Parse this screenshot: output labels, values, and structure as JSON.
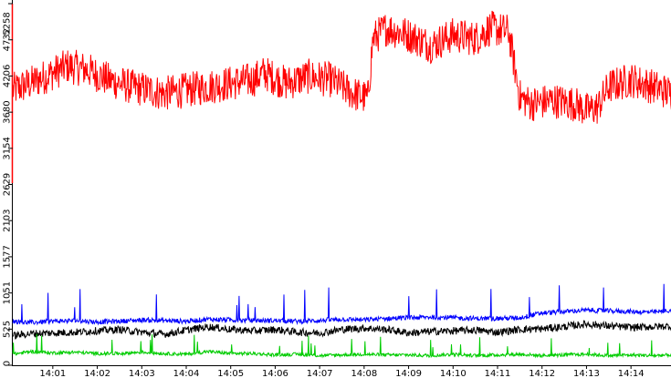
{
  "chart_data": {
    "type": "line",
    "title": "",
    "xlabel": "",
    "ylabel": "",
    "ylim": [
      0,
      5258
    ],
    "y_ticks": [
      "0",
      "525",
      "1051",
      "1577",
      "2103",
      "2629",
      "3154",
      "3680",
      "4206",
      "4732",
      "5258"
    ],
    "y_tick_values": [
      0,
      525,
      1051,
      1577,
      2103,
      2629,
      3154,
      3680,
      4206,
      4732,
      5258
    ],
    "x_ticks": [
      "14:01",
      "14:02",
      "14:03",
      "14:04",
      "14:05",
      "14:06",
      "14:07",
      "14:08",
      "14:09",
      "14:10",
      "14:11",
      "14:12",
      "14:13",
      "14:14"
    ],
    "x_tick_minutes": [
      1,
      2,
      3,
      4,
      5,
      6,
      7,
      8,
      9,
      10,
      11,
      12,
      13,
      14
    ],
    "x_range_minutes": [
      0.1,
      14.9
    ],
    "grid": false,
    "legend": "none",
    "series": [
      {
        "color": "#ff0000",
        "x": [
          "14:00:06",
          "14:00:30",
          "14:01:00",
          "14:01:20",
          "14:01:45",
          "14:02:15",
          "14:02:45",
          "14:03:10",
          "14:03:30",
          "14:04:00",
          "14:04:30",
          "14:05:00",
          "14:05:30",
          "14:05:45",
          "14:06:15",
          "14:06:45",
          "14:07:15",
          "14:07:30",
          "14:07:45",
          "14:08:05",
          "14:08:12",
          "14:08:30",
          "14:09:00",
          "14:09:30",
          "14:10:00",
          "14:10:30",
          "14:10:50",
          "14:11:15",
          "14:11:30",
          "14:11:45",
          "14:12:15",
          "14:12:45",
          "14:13:00",
          "14:13:15",
          "14:13:30",
          "14:14:00",
          "14:14:30",
          "14:14:55"
        ],
        "y": [
          4000,
          4100,
          4250,
          4350,
          4300,
          4150,
          4050,
          4000,
          3950,
          4000,
          4050,
          4100,
          4150,
          4250,
          4100,
          4200,
          4150,
          4050,
          3950,
          3880,
          4750,
          4900,
          4800,
          4650,
          4800,
          4750,
          4900,
          4850,
          3900,
          3800,
          3850,
          3800,
          3700,
          3750,
          4050,
          4150,
          4050,
          3950
        ]
      },
      {
        "color": "#0000ff",
        "x": [
          "14:00:06",
          "14:00:30",
          "14:01:00",
          "14:01:30",
          "14:02:00",
          "14:02:30",
          "14:03:00",
          "14:03:30",
          "14:04:00",
          "14:04:30",
          "14:05:00",
          "14:05:30",
          "14:06:00",
          "14:06:30",
          "14:07:00",
          "14:07:30",
          "14:08:00",
          "14:08:30",
          "14:09:00",
          "14:09:30",
          "14:10:00",
          "14:10:30",
          "14:11:00",
          "14:11:30",
          "14:12:00",
          "14:12:30",
          "14:13:00",
          "14:13:30",
          "14:14:00",
          "14:14:30",
          "14:14:55"
        ],
        "y": [
          640,
          620,
          640,
          650,
          630,
          640,
          660,
          650,
          640,
          670,
          660,
          650,
          650,
          640,
          650,
          670,
          660,
          680,
          690,
          700,
          690,
          680,
          680,
          690,
          760,
          780,
          800,
          790,
          780,
          770,
          800
        ]
      },
      {
        "color": "#000000",
        "x": [
          "14:00:06",
          "14:00:30",
          "14:01:00",
          "14:01:30",
          "14:02:00",
          "14:02:30",
          "14:03:00",
          "14:03:30",
          "14:04:00",
          "14:04:30",
          "14:05:00",
          "14:05:30",
          "14:06:00",
          "14:06:30",
          "14:07:00",
          "14:07:30",
          "14:08:00",
          "14:08:30",
          "14:09:00",
          "14:09:30",
          "14:10:00",
          "14:10:30",
          "14:11:00",
          "14:11:30",
          "14:12:00",
          "14:12:30",
          "14:13:00",
          "14:13:30",
          "14:14:00",
          "14:14:30",
          "14:14:55"
        ],
        "y": [
          430,
          460,
          470,
          480,
          500,
          520,
          480,
          450,
          510,
          560,
          520,
          500,
          520,
          480,
          470,
          520,
          540,
          520,
          470,
          490,
          500,
          510,
          480,
          520,
          530,
          560,
          600,
          570,
          550,
          560,
          570
        ]
      },
      {
        "color": "#00cc00",
        "x": [
          "14:00:06",
          "14:00:30",
          "14:01:00",
          "14:01:30",
          "14:02:00",
          "14:02:30",
          "14:03:00",
          "14:03:30",
          "14:04:00",
          "14:04:30",
          "14:05:00",
          "14:05:30",
          "14:06:00",
          "14:06:30",
          "14:07:00",
          "14:07:30",
          "14:08:00",
          "14:08:30",
          "14:09:00",
          "14:09:30",
          "14:10:00",
          "14:10:30",
          "14:11:00",
          "14:11:30",
          "14:12:00",
          "14:12:30",
          "14:13:00",
          "14:13:30",
          "14:14:00",
          "14:14:30",
          "14:14:55"
        ],
        "y": [
          160,
          200,
          180,
          190,
          170,
          170,
          190,
          170,
          160,
          200,
          170,
          170,
          150,
          160,
          140,
          150,
          160,
          150,
          150,
          140,
          160,
          140,
          150,
          160,
          140,
          150,
          160,
          140,
          150,
          140,
          150
        ]
      }
    ]
  }
}
